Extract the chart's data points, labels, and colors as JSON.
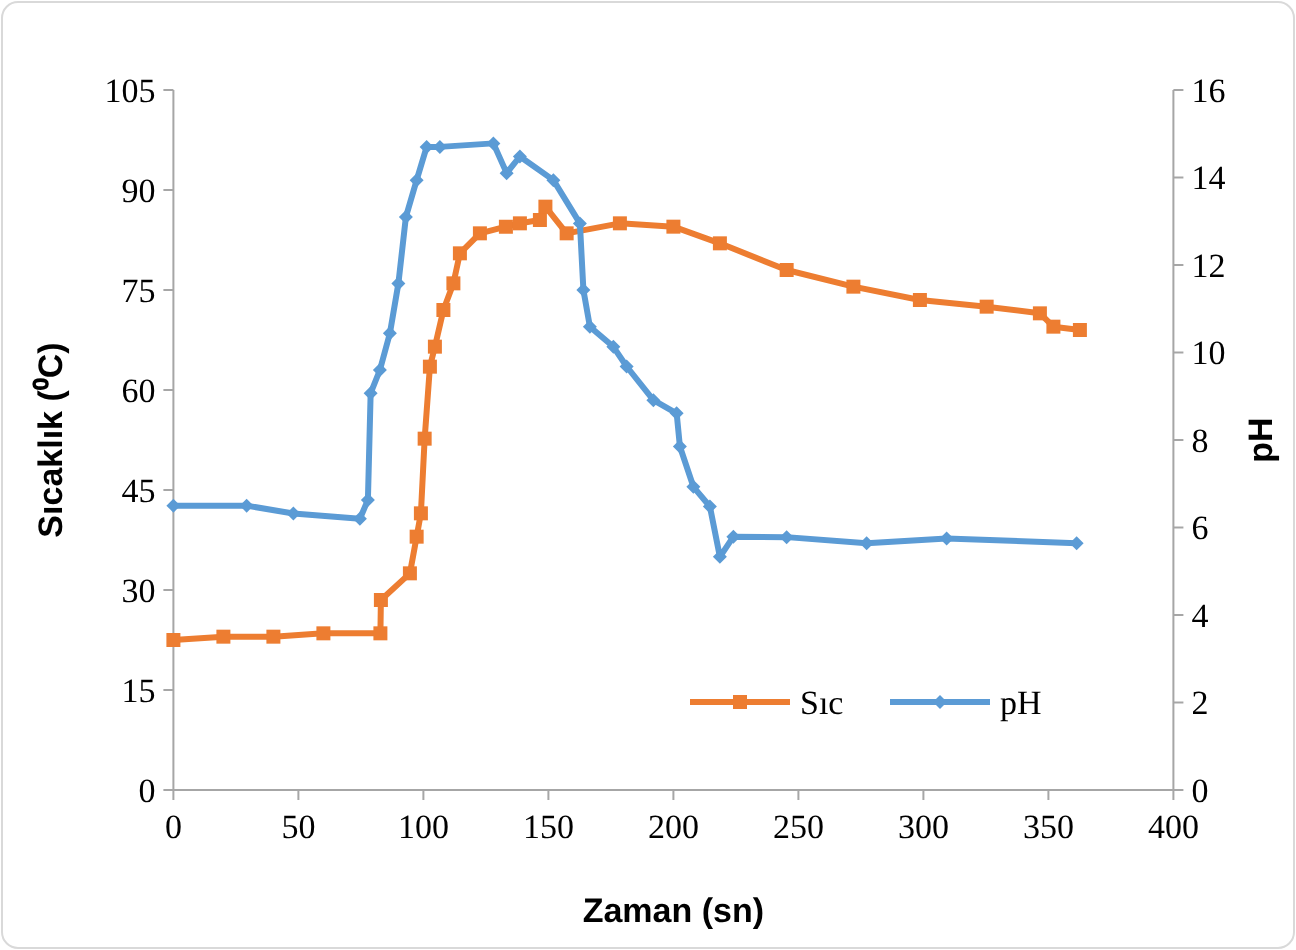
{
  "chart_data": {
    "type": "line",
    "xlabel": "Zaman (sn)",
    "ylabel": "Sıcaklık (⁰C)",
    "y2label": "pH",
    "xlim": [
      0,
      400
    ],
    "xticks": [
      0,
      50,
      100,
      150,
      200,
      250,
      300,
      350,
      400
    ],
    "ylim": [
      0,
      105
    ],
    "yticks": [
      0,
      15,
      30,
      45,
      60,
      75,
      90,
      105
    ],
    "y2lim": [
      0,
      16
    ],
    "y2ticks": [
      0,
      2,
      4,
      6,
      8,
      10,
      12,
      14,
      16
    ],
    "legend": "bottom right",
    "grid": false,
    "line_style": "solid",
    "series": [
      {
        "name": "Sıc",
        "color": "#ed7d31",
        "marker": "square",
        "x": [
          0,
          20,
          40,
          60,
          82.8,
          83,
          94.6,
          97.3,
          99,
          100.5,
          102.6,
          104.6,
          108,
          112,
          114.6,
          122.6,
          133,
          138.6,
          146.6,
          148.8,
          157.3,
          178.6,
          200,
          218.6,
          245.3,
          272,
          298.6,
          325.3,
          346.6,
          352,
          362.6
        ],
        "values": [
          22.5,
          23,
          23,
          23.5,
          23.5,
          28.5,
          32.5,
          38,
          41.5,
          52.7,
          63.5,
          66.5,
          72,
          76,
          80.5,
          83.5,
          84.5,
          85,
          85.5,
          87.5,
          83.5,
          85,
          84.5,
          82,
          78,
          75.5,
          73.5,
          72.5,
          71.5,
          69.5,
          69
        ]
      },
      {
        "name": "pH",
        "color": "#5b9bd5",
        "marker": "diamond",
        "axis": "y2",
        "x": [
          0,
          29.3,
          48,
          74.6,
          77.8,
          78.9,
          82.6,
          86.6,
          90,
          93,
          97.3,
          101.3,
          106.6,
          128,
          133.3,
          138.6,
          152,
          162.6,
          164,
          166.6,
          176,
          181.3,
          192,
          201.3,
          202.6,
          208,
          214.6,
          218.6,
          224,
          245.3,
          277.3,
          309.3,
          361.3
        ],
        "values": [
          6.5,
          6.5,
          6.32,
          6.2,
          6.63,
          9.07,
          9.6,
          10.44,
          11.58,
          13.1,
          13.94,
          14.7,
          14.7,
          14.78,
          14.1,
          14.48,
          13.94,
          12.95,
          11.43,
          10.59,
          10.13,
          9.68,
          8.91,
          8.61,
          7.85,
          6.93,
          6.48,
          5.33,
          5.79,
          5.78,
          5.64,
          5.75,
          5.64
        ]
      }
    ]
  }
}
